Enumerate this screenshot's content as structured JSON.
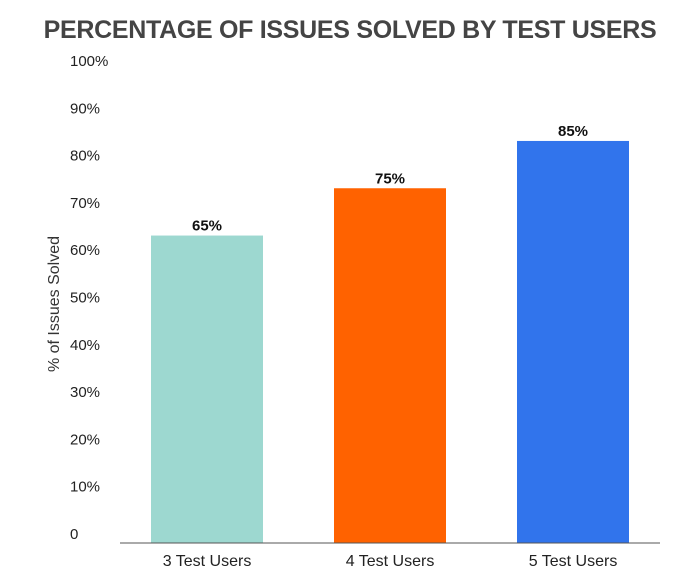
{
  "chart_data": {
    "type": "bar",
    "title": "PERCENTAGE OF ISSUES SOLVED BY TEST USERS",
    "xlabel": "",
    "ylabel": "% of Issues Solved",
    "categories": [
      "3 Test Users",
      "4 Test Users",
      "5 Test Users"
    ],
    "values": [
      65,
      75,
      85
    ],
    "data_labels": [
      "65%",
      "75%",
      "85%"
    ],
    "ylim": [
      0,
      100
    ],
    "y_tick_labels": [
      "0",
      "10%",
      "20%",
      "30%",
      "40%",
      "50%",
      "60%",
      "70%",
      "80%",
      "90%",
      "100%"
    ],
    "grid": false,
    "colors": [
      "#9dd8d0",
      "#ff6200",
      "#3174ec"
    ]
  }
}
